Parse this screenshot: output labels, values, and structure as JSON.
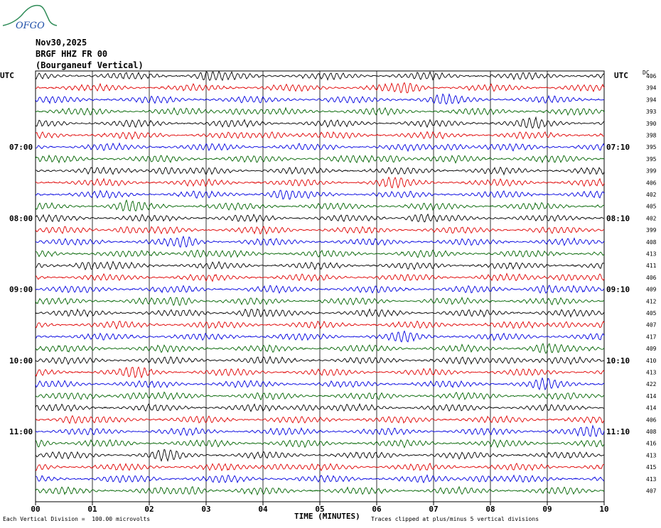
{
  "header": {
    "date": "Nov30,2025",
    "station": "BRGF HHZ FR 00",
    "location": "(Bourganeuf Vertical)",
    "logo_text": "OFGO"
  },
  "left_timezone": "UTC",
  "right_timezone": "UTC",
  "dc_label": "DC",
  "footer": {
    "scale_note": "Each Vertical Division =  100.00 microvolts",
    "xlabel": "TIME (MINUTES)",
    "clip_note": "Traces clipped at plus/minus 5 vertical divisions"
  },
  "colors": {
    "series": [
      "#000000",
      "#e00000",
      "#0000e0",
      "#006400"
    ],
    "grid": "#000000"
  },
  "chart_data": {
    "type": "line",
    "title": "BRGF HHZ FR 00 (Bourganeuf Vertical)",
    "xlabel": "TIME (MINUTES)",
    "ylabel": "",
    "xlim": [
      0,
      10
    ],
    "x_ticks": [
      "00",
      "01",
      "02",
      "03",
      "04",
      "05",
      "06",
      "07",
      "08",
      "09",
      "10"
    ],
    "trace_interval_minutes": 10,
    "trace_count": 36,
    "left_hour_labels": [
      {
        "trace": 6,
        "label": "07:00"
      },
      {
        "trace": 12,
        "label": "08:00"
      },
      {
        "trace": 18,
        "label": "09:00"
      },
      {
        "trace": 24,
        "label": "10:00"
      },
      {
        "trace": 30,
        "label": "11:00"
      }
    ],
    "right_hour_labels": [
      {
        "trace": 6,
        "label": "07:10"
      },
      {
        "trace": 12,
        "label": "08:10"
      },
      {
        "trace": 18,
        "label": "09:10"
      },
      {
        "trace": 24,
        "label": "10:10"
      },
      {
        "trace": 30,
        "label": "11:10"
      }
    ],
    "dc_offsets": [
      406,
      394,
      394,
      393,
      390,
      398,
      395,
      395,
      399,
      406,
      402,
      405,
      402,
      399,
      408,
      413,
      411,
      406,
      409,
      412,
      405,
      407,
      417,
      409,
      410,
      413,
      422,
      414,
      414,
      406,
      408,
      416,
      413,
      415,
      413,
      407
    ]
  }
}
